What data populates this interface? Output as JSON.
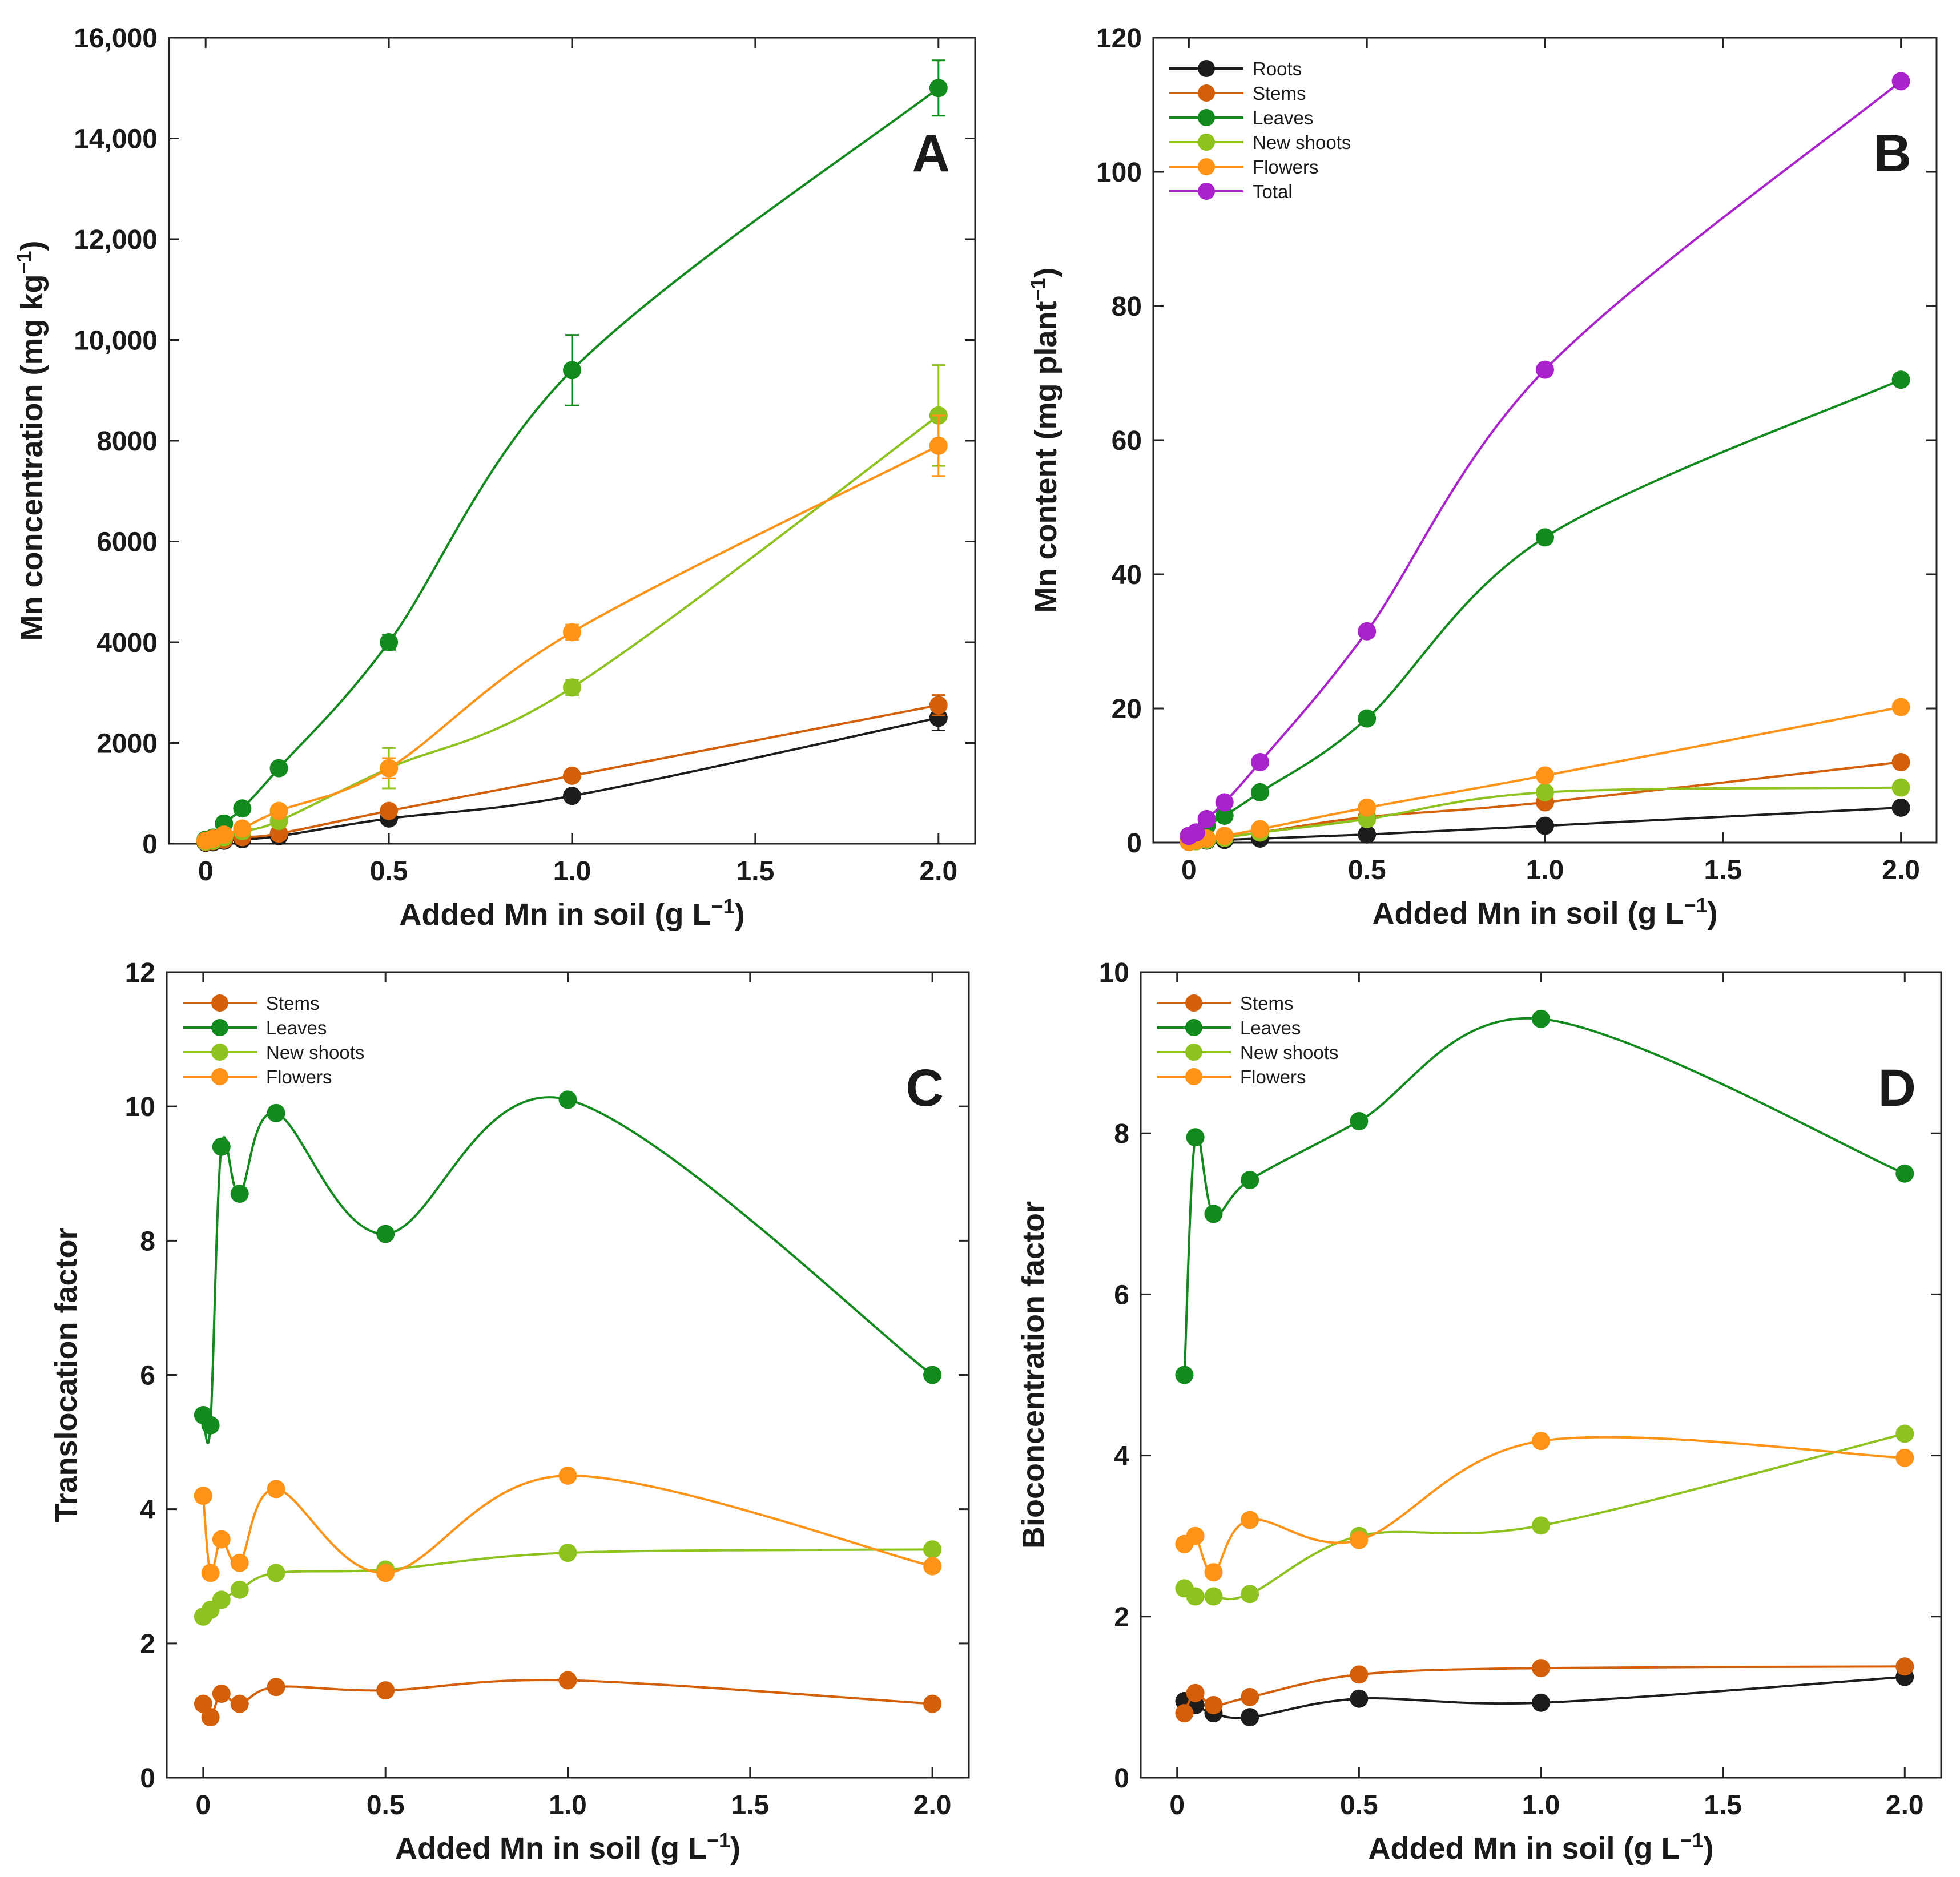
{
  "colors": {
    "Roots": "#1c1c1c",
    "Stems": "#d35f0a",
    "Leaves": "#128a1e",
    "New shoots": "#8dc21f",
    "Flowers": "#ff9318",
    "Total": "#aa22cc"
  },
  "chart_data": [
    {
      "type": "line",
      "panel": "A",
      "letter": "A",
      "xlabel": "Added Mn in soil (g L",
      "xlabel_sup": "−1",
      "xlabel_tail": ")",
      "ylabel": "Mn concentration (mg kg",
      "ylabel_sup": "−1",
      "ylabel_tail": ")",
      "xlim": [
        -0.1,
        2.1
      ],
      "ylim": [
        0,
        16000
      ],
      "xticks": [
        0,
        0.5,
        1.0,
        1.5,
        2.0
      ],
      "xtick_labels": [
        "0",
        "0.5",
        "1.0",
        "1.5",
        "2.0"
      ],
      "yticks": [
        0,
        2000,
        4000,
        6000,
        8000,
        10000,
        12000,
        14000,
        16000
      ],
      "ytick_labels": [
        "0",
        "2000",
        "4000",
        "6000",
        "8000",
        "10,000",
        "12,000",
        "14,000",
        "16,000"
      ],
      "legend": [],
      "series": [
        {
          "name": "Roots",
          "x": [
            0,
            0.02,
            0.05,
            0.1,
            0.2,
            0.5,
            1.0,
            2.0
          ],
          "y": [
            20,
            30,
            60,
            90,
            150,
            500,
            950,
            2500
          ],
          "err": [
            0,
            0,
            0,
            0,
            0,
            60,
            80,
            250
          ]
        },
        {
          "name": "Stems",
          "x": [
            0,
            0.02,
            0.05,
            0.1,
            0.2,
            0.5,
            1.0,
            2.0
          ],
          "y": [
            30,
            50,
            80,
            130,
            200,
            650,
            1350,
            2750
          ],
          "err": [
            0,
            0,
            0,
            0,
            0,
            80,
            100,
            200
          ]
        },
        {
          "name": "Leaves",
          "x": [
            0,
            0.02,
            0.05,
            0.1,
            0.2,
            0.5,
            1.0,
            2.0
          ],
          "y": [
            80,
            120,
            400,
            700,
            1500,
            4000,
            9400,
            15000
          ],
          "err": [
            0,
            0,
            0,
            0,
            0,
            150,
            700,
            550
          ]
        },
        {
          "name": "New shoots",
          "x": [
            0,
            0.02,
            0.05,
            0.1,
            0.2,
            0.5,
            1.0,
            2.0
          ],
          "y": [
            40,
            60,
            130,
            250,
            450,
            1500,
            3100,
            8500
          ],
          "err": [
            0,
            0,
            0,
            0,
            0,
            400,
            150,
            1000
          ]
        },
        {
          "name": "Flowers",
          "x": [
            0,
            0.02,
            0.05,
            0.1,
            0.2,
            0.5,
            1.0,
            2.0
          ],
          "y": [
            60,
            100,
            180,
            300,
            650,
            1500,
            4200,
            7900
          ],
          "err": [
            0,
            0,
            0,
            0,
            0,
            200,
            150,
            600
          ]
        }
      ]
    },
    {
      "type": "line",
      "panel": "B",
      "letter": "B",
      "xlabel": "Added Mn in soil (g L",
      "xlabel_sup": "−1",
      "xlabel_tail": ")",
      "ylabel": "Mn content (mg plant",
      "ylabel_sup": "−1",
      "ylabel_tail": ")",
      "xlim": [
        -0.1,
        2.1
      ],
      "ylim": [
        0,
        120
      ],
      "xticks": [
        0,
        0.5,
        1.0,
        1.5,
        2.0
      ],
      "xtick_labels": [
        "0",
        "0.5",
        "1.0",
        "1.5",
        "2.0"
      ],
      "yticks": [
        0,
        20,
        40,
        60,
        80,
        100,
        120
      ],
      "ytick_labels": [
        "0",
        "20",
        "40",
        "60",
        "80",
        "100",
        "120"
      ],
      "legend": [
        "Roots",
        "Stems",
        "Leaves",
        "New shoots",
        "Flowers",
        "Total"
      ],
      "series": [
        {
          "name": "Roots",
          "x": [
            0,
            0.02,
            0.05,
            0.1,
            0.2,
            0.5,
            1.0,
            2.0
          ],
          "y": [
            0.1,
            0.2,
            0.3,
            0.4,
            0.6,
            1.2,
            2.5,
            5.2
          ]
        },
        {
          "name": "Stems",
          "x": [
            0,
            0.02,
            0.05,
            0.1,
            0.2,
            0.5,
            1.0,
            2.0
          ],
          "y": [
            0.2,
            0.3,
            0.5,
            0.8,
            1.5,
            3.8,
            6.0,
            12.0
          ]
        },
        {
          "name": "Leaves",
          "x": [
            0,
            0.02,
            0.05,
            0.1,
            0.2,
            0.5,
            1.0,
            2.0
          ],
          "y": [
            0.6,
            1.0,
            2.5,
            4.0,
            7.5,
            18.5,
            45.5,
            69.0
          ]
        },
        {
          "name": "New shoots",
          "x": [
            0,
            0.02,
            0.05,
            0.1,
            0.2,
            0.5,
            1.0,
            2.0
          ],
          "y": [
            0.1,
            0.2,
            0.4,
            0.7,
            1.5,
            3.5,
            7.5,
            8.2
          ]
        },
        {
          "name": "Flowers",
          "x": [
            0,
            0.02,
            0.05,
            0.1,
            0.2,
            0.5,
            1.0,
            2.0
          ],
          "y": [
            0.1,
            0.3,
            0.6,
            1.0,
            2.0,
            5.2,
            10.0,
            20.2
          ]
        },
        {
          "name": "Total",
          "x": [
            0,
            0.02,
            0.05,
            0.1,
            0.2,
            0.5,
            1.0,
            2.0
          ],
          "y": [
            1.0,
            1.5,
            3.5,
            6.0,
            12.0,
            31.5,
            70.5,
            113.5
          ]
        }
      ]
    },
    {
      "type": "scatter",
      "panel": "C",
      "letter": "C",
      "xlabel": "Added Mn in soil (g L",
      "xlabel_sup": "−1",
      "xlabel_tail": ")",
      "ylabel": "Translocation factor",
      "ylabel_sup": "",
      "ylabel_tail": "",
      "xlim": [
        -0.1,
        2.1
      ],
      "ylim": [
        0,
        12
      ],
      "xticks": [
        0,
        0.5,
        1.0,
        1.5,
        2.0
      ],
      "xtick_labels": [
        "0",
        "0.5",
        "1.0",
        "1.5",
        "2.0"
      ],
      "yticks": [
        0,
        2,
        4,
        6,
        8,
        10,
        12
      ],
      "ytick_labels": [
        "0",
        "2",
        "4",
        "6",
        "8",
        "10",
        "12"
      ],
      "legend": [
        "Stems",
        "Leaves",
        "New shoots",
        "Flowers"
      ],
      "series": [
        {
          "name": "Stems",
          "x": [
            0,
            0.02,
            0.05,
            0.1,
            0.2,
            0.5,
            1.0,
            2.0
          ],
          "y": [
            1.1,
            0.9,
            1.25,
            1.1,
            1.35,
            1.3,
            1.45,
            1.1
          ]
        },
        {
          "name": "Leaves",
          "x": [
            0,
            0.02,
            0.05,
            0.1,
            0.2,
            0.5,
            1.0,
            2.0
          ],
          "y": [
            5.4,
            5.25,
            9.4,
            8.7,
            9.9,
            8.1,
            10.1,
            6.0
          ]
        },
        {
          "name": "New shoots",
          "x": [
            0,
            0.02,
            0.05,
            0.1,
            0.2,
            0.5,
            1.0,
            2.0
          ],
          "y": [
            2.4,
            2.5,
            2.65,
            2.8,
            3.05,
            3.1,
            3.35,
            3.4
          ]
        },
        {
          "name": "Flowers",
          "x": [
            0,
            0.02,
            0.05,
            0.1,
            0.2,
            0.5,
            1.0,
            2.0
          ],
          "y": [
            4.2,
            3.05,
            3.55,
            3.2,
            4.3,
            3.05,
            4.5,
            3.15
          ]
        }
      ]
    },
    {
      "type": "scatter",
      "panel": "D",
      "letter": "D",
      "xlabel": "Added Mn in soil (g L",
      "xlabel_sup": "−1",
      "xlabel_tail": ")",
      "ylabel": "Bioconcentration factor",
      "ylabel_sup": "",
      "ylabel_tail": "",
      "xlim": [
        -0.1,
        2.1
      ],
      "ylim": [
        0,
        10
      ],
      "xticks": [
        0,
        0.5,
        1.0,
        1.5,
        2.0
      ],
      "xtick_labels": [
        "0",
        "0.5",
        "1.0",
        "1.5",
        "2.0"
      ],
      "yticks": [
        0,
        2,
        4,
        6,
        8,
        10
      ],
      "ytick_labels": [
        "0",
        "2",
        "4",
        "6",
        "8",
        "10"
      ],
      "legend": [
        "Stems",
        "Leaves",
        "New shoots",
        "Flowers"
      ],
      "series": [
        {
          "name": "Roots",
          "x": [
            0.02,
            0.05,
            0.1,
            0.2,
            0.5,
            1.0,
            2.0
          ],
          "y": [
            0.95,
            0.9,
            0.8,
            0.75,
            0.98,
            0.93,
            1.25
          ]
        },
        {
          "name": "Stems",
          "x": [
            0.02,
            0.05,
            0.1,
            0.2,
            0.5,
            1.0,
            2.0
          ],
          "y": [
            0.8,
            1.05,
            0.9,
            1.0,
            1.28,
            1.36,
            1.38
          ]
        },
        {
          "name": "Leaves",
          "x": [
            0.02,
            0.05,
            0.1,
            0.2,
            0.5,
            1.0,
            2.0
          ],
          "y": [
            5.0,
            7.95,
            7.0,
            7.42,
            8.15,
            9.42,
            7.5
          ]
        },
        {
          "name": "New shoots",
          "x": [
            0.02,
            0.05,
            0.1,
            0.2,
            0.5,
            1.0,
            2.0
          ],
          "y": [
            2.35,
            2.25,
            2.25,
            2.28,
            3.0,
            3.13,
            4.27
          ]
        },
        {
          "name": "Flowers",
          "x": [
            0.02,
            0.05,
            0.1,
            0.2,
            0.5,
            1.0,
            2.0
          ],
          "y": [
            2.9,
            3.0,
            2.55,
            3.2,
            2.95,
            4.18,
            3.97
          ]
        }
      ]
    }
  ]
}
